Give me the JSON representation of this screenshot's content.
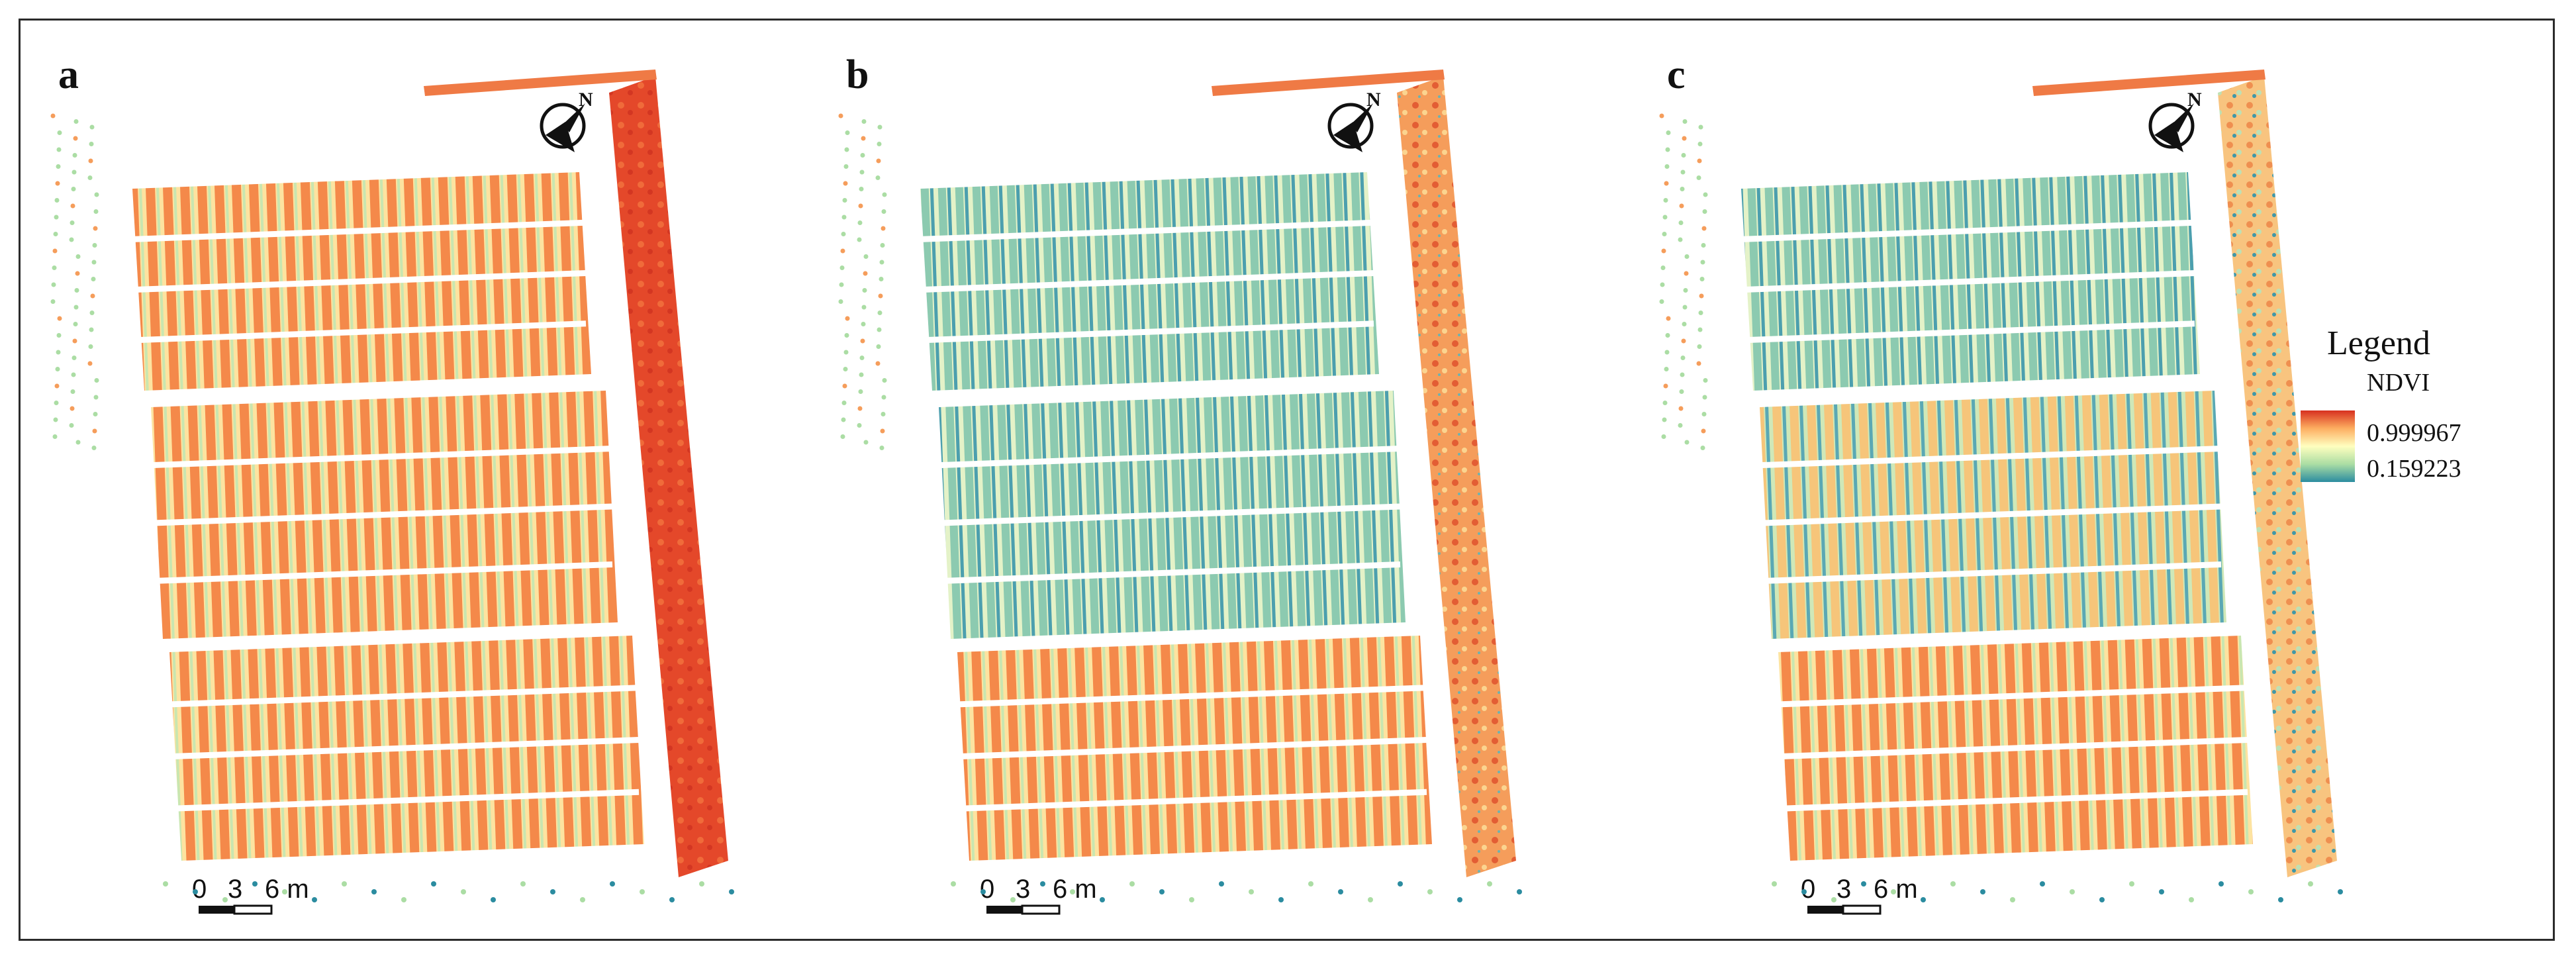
{
  "panels": [
    {
      "label": "a",
      "scale": {
        "ticks": [
          "0",
          "3",
          "6 m"
        ]
      },
      "blocks": [
        {
          "ndvi": "high"
        },
        {
          "ndvi": "high"
        },
        {
          "ndvi": "high"
        }
      ],
      "strip": {
        "ndvi": "very-high"
      }
    },
    {
      "label": "b",
      "scale": {
        "ticks": [
          "0",
          "3",
          "6 m"
        ]
      },
      "blocks": [
        {
          "ndvi": "low"
        },
        {
          "ndvi": "low"
        },
        {
          "ndvi": "high"
        }
      ],
      "strip": {
        "ndvi": "high-mixed"
      }
    },
    {
      "label": "c",
      "scale": {
        "ticks": [
          "0",
          "3",
          "6 m"
        ]
      },
      "blocks": [
        {
          "ndvi": "low"
        },
        {
          "ndvi": "medium"
        },
        {
          "ndvi": "high"
        }
      ],
      "strip": {
        "ndvi": "medium-mixed"
      }
    }
  ],
  "legend": {
    "title": "Legend",
    "variable": "NDVI",
    "max_label": "0.999967",
    "min_label": "0.159223",
    "colors": [
      "#d7301f",
      "#fdae61",
      "#ffffbf",
      "#abdda4",
      "#2b8ca0"
    ]
  },
  "icons": {
    "north_arrow": "north-arrow-icon"
  }
}
